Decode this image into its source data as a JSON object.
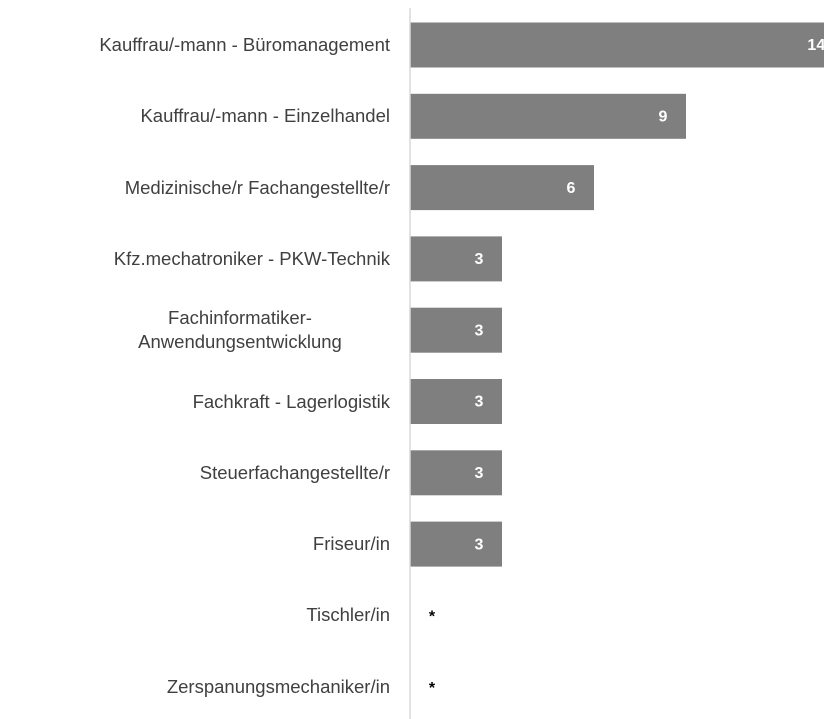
{
  "chart_data": {
    "type": "bar",
    "orientation": "horizontal",
    "categories": [
      "Kauffrau/-mann - Büromanagement",
      "Kauffrau/-mann - Einzelhandel",
      "Medizinische/r Fachangestellte/r",
      "Kfz.mechatroniker - PKW-Technik",
      "Fachinformatiker-Anwendungsentwicklung",
      "Fachkraft - Lagerlogistik",
      "Steuerfachangestellte/r",
      "Friseur/in",
      "Tischler/in",
      "Zerspanungsmechaniker/in"
    ],
    "values": [
      14,
      9,
      6,
      3,
      3,
      3,
      3,
      3,
      null,
      null
    ],
    "value_labels": [
      "14",
      "9",
      "6",
      "3",
      "3",
      "3",
      "3",
      "3",
      "*",
      "*"
    ],
    "color": "#7f7f7f",
    "xlim": [
      0,
      13.5
    ]
  }
}
